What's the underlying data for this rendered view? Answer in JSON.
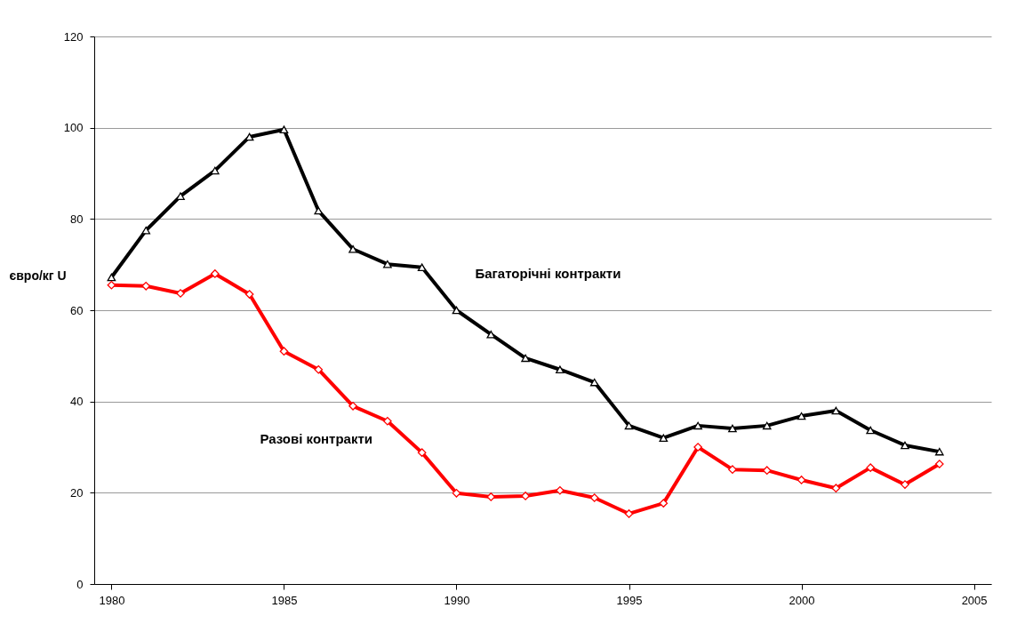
{
  "chart_data": {
    "type": "line",
    "ylabel": "євро/кг U",
    "x": [
      1980,
      1981,
      1982,
      1983,
      1984,
      1985,
      1986,
      1987,
      1988,
      1989,
      1990,
      1991,
      1992,
      1993,
      1994,
      1995,
      1996,
      1997,
      1998,
      1999,
      2000,
      2001,
      2002,
      2003,
      2004
    ],
    "series": [
      {
        "name": "Багаторічні контракти",
        "color": "#000000",
        "marker": "triangle",
        "values": [
          67.2,
          77.5,
          85,
          90.6,
          98,
          99.6,
          81.8,
          73.4,
          70.1,
          69.4,
          60,
          54.7,
          49.5,
          47,
          44.2,
          34.7,
          32,
          34.7,
          34.1,
          34.7,
          36.8,
          38,
          33.7,
          30.4,
          29
        ]
      },
      {
        "name": "Разові контракти",
        "color": "#ff0000",
        "marker": "diamond",
        "values": [
          65.5,
          65.3,
          63.7,
          68,
          63.5,
          51,
          47,
          39,
          35.7,
          28.8,
          19.9,
          19.1,
          19.3,
          20.5,
          18.9,
          15.4,
          17.7,
          30,
          25.1,
          24.9,
          22.8,
          21,
          25.5,
          21.8,
          26.3
        ]
      }
    ],
    "xlim": [
      1979.5,
      2005.5
    ],
    "xticks": [
      1980,
      1985,
      1990,
      1995,
      2000,
      2005
    ],
    "ylim": [
      0,
      120
    ],
    "yticks": [
      0,
      20,
      40,
      60,
      80,
      100,
      120
    ],
    "grid": "y",
    "line_style": "solid"
  }
}
